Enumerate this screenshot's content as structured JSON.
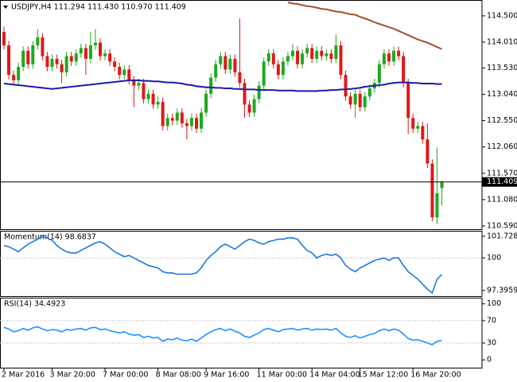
{
  "chart_data": [
    {
      "type": "candlestick",
      "title": "USDJPY,H4  111.294 111.430 110.970 111.409",
      "categories": [
        "2 Mar 2016",
        null,
        null,
        null,
        null,
        null,
        null,
        null,
        null,
        null,
        "3 Mar 20:00",
        null,
        null,
        null,
        null,
        null,
        null,
        null,
        null,
        null,
        null,
        "7 Mar 00:00",
        null,
        null,
        null,
        null,
        null,
        null,
        null,
        null,
        null,
        null,
        "8 Mar 08:00",
        null,
        null,
        null,
        null,
        null,
        null,
        null,
        null,
        null,
        "9 Mar 16:00",
        null,
        null,
        null,
        null,
        null,
        null,
        null,
        null,
        null,
        null,
        "11 Mar 00:00",
        null,
        null,
        null,
        null,
        null,
        null,
        null,
        null,
        null,
        null,
        "14 Mar 04:00",
        null,
        null,
        null,
        null,
        null,
        null,
        null,
        null,
        null,
        "15 Mar 12:00",
        null,
        null,
        null,
        null,
        null,
        null,
        null,
        null,
        null,
        null,
        "16 Mar 20:00",
        null,
        null,
        null,
        null,
        null,
        null
      ],
      "open": [
        114.2,
        113.95,
        113.4,
        113.3,
        113.55,
        113.85,
        113.6,
        113.95,
        114.1,
        113.75,
        113.55,
        113.7,
        113.6,
        113.45,
        113.75,
        113.65,
        113.8,
        113.9,
        113.7,
        113.95,
        114.0,
        113.75,
        113.8,
        113.65,
        113.55,
        113.4,
        113.5,
        113.3,
        113.2,
        113.25,
        112.95,
        113.05,
        112.85,
        112.9,
        112.45,
        112.6,
        112.55,
        112.7,
        112.5,
        112.45,
        112.6,
        112.4,
        112.7,
        113.05,
        113.35,
        113.6,
        113.75,
        113.5,
        113.7,
        113.45,
        113.25,
        112.85,
        112.7,
        112.95,
        113.2,
        113.65,
        113.8,
        113.6,
        113.4,
        113.65,
        113.75,
        113.85,
        113.6,
        113.8,
        113.9,
        113.7,
        113.85,
        113.75,
        113.8,
        113.7,
        113.95,
        113.4,
        113.0,
        112.85,
        113.05,
        112.8,
        113.0,
        113.15,
        113.25,
        113.6,
        113.8,
        113.65,
        113.85,
        113.75,
        113.25,
        112.6,
        112.4,
        112.45,
        112.2,
        111.75,
        110.75,
        111.294
      ],
      "high": [
        114.3,
        114.03,
        113.48,
        113.63,
        113.93,
        113.93,
        114.03,
        114.25,
        114.18,
        113.83,
        113.78,
        113.78,
        113.68,
        113.83,
        113.83,
        113.88,
        113.98,
        113.98,
        114.2,
        114.25,
        114.08,
        113.88,
        113.88,
        113.73,
        113.63,
        113.58,
        113.58,
        113.38,
        113.33,
        113.33,
        113.13,
        113.13,
        113.0,
        112.98,
        112.68,
        112.68,
        112.78,
        112.78,
        112.58,
        112.68,
        112.68,
        112.78,
        113.13,
        113.43,
        113.68,
        113.83,
        113.83,
        113.78,
        113.78,
        114.45,
        113.33,
        112.93,
        113.03,
        113.28,
        113.73,
        113.88,
        113.88,
        113.68,
        113.73,
        113.83,
        113.98,
        113.93,
        113.88,
        113.98,
        113.98,
        113.93,
        113.93,
        113.88,
        113.88,
        114.15,
        114.03,
        113.48,
        113.08,
        113.13,
        113.13,
        113.08,
        113.23,
        113.33,
        113.68,
        113.88,
        113.88,
        113.93,
        113.93,
        113.83,
        113.33,
        112.68,
        112.53,
        112.53,
        112.5,
        111.83,
        112.05,
        111.43
      ],
      "low": [
        113.87,
        113.32,
        113.22,
        113.22,
        113.47,
        113.52,
        113.52,
        113.87,
        113.67,
        113.47,
        113.47,
        113.52,
        113.25,
        113.37,
        113.57,
        113.57,
        113.72,
        113.4,
        113.62,
        113.87,
        113.67,
        113.67,
        113.57,
        113.47,
        113.32,
        113.32,
        113.22,
        112.8,
        113.12,
        112.87,
        112.87,
        112.77,
        112.77,
        112.37,
        112.37,
        112.47,
        112.47,
        112.42,
        112.2,
        112.37,
        112.32,
        112.32,
        112.62,
        112.97,
        113.27,
        113.52,
        113.42,
        113.42,
        113.37,
        113.17,
        112.6,
        112.62,
        112.62,
        112.87,
        113.12,
        113.57,
        113.52,
        113.32,
        113.32,
        113.57,
        113.67,
        113.52,
        113.52,
        113.72,
        113.62,
        113.62,
        113.67,
        113.67,
        113.62,
        113.62,
        113.32,
        112.92,
        112.77,
        112.6,
        112.72,
        112.72,
        112.92,
        113.07,
        113.17,
        113.52,
        113.57,
        113.57,
        113.67,
        113.17,
        112.3,
        112.32,
        112.32,
        112.12,
        111.67,
        110.68,
        110.62,
        110.97
      ],
      "close": [
        113.95,
        113.4,
        113.3,
        113.55,
        113.85,
        113.6,
        113.95,
        114.1,
        113.75,
        113.55,
        113.7,
        113.6,
        113.45,
        113.75,
        113.65,
        113.8,
        113.9,
        113.7,
        113.95,
        114.0,
        113.75,
        113.8,
        113.65,
        113.55,
        113.4,
        113.5,
        113.3,
        113.2,
        113.25,
        112.95,
        113.05,
        112.85,
        112.9,
        112.45,
        112.6,
        112.55,
        112.7,
        112.5,
        112.45,
        112.6,
        112.4,
        112.7,
        113.05,
        113.35,
        113.6,
        113.75,
        113.5,
        113.7,
        113.45,
        113.25,
        112.85,
        112.7,
        112.95,
        113.2,
        113.65,
        113.8,
        113.6,
        113.4,
        113.65,
        113.75,
        113.85,
        113.6,
        113.8,
        113.9,
        113.7,
        113.85,
        113.75,
        113.8,
        113.7,
        113.95,
        113.4,
        113.0,
        112.85,
        113.05,
        112.8,
        113.0,
        113.15,
        113.25,
        113.6,
        113.8,
        113.65,
        113.85,
        113.75,
        113.25,
        112.6,
        112.4,
        112.45,
        112.2,
        111.75,
        110.75,
        111.2,
        111.409
      ],
      "up_color": "#1fa81f",
      "down_color": "#e01818",
      "overlays": [
        {
          "color": "#1a1aa8",
          "values": [
            113.24,
            113.23,
            113.22,
            113.21,
            113.2,
            113.19,
            113.18,
            113.17,
            113.16,
            113.15,
            113.14,
            113.15,
            113.16,
            113.17,
            113.18,
            113.19,
            113.2,
            113.21,
            113.22,
            113.23,
            113.24,
            113.25,
            113.26,
            113.27,
            113.28,
            113.29,
            113.3,
            113.3,
            113.3,
            113.29,
            113.29,
            113.28,
            113.28,
            113.27,
            113.26,
            113.26,
            113.25,
            113.24,
            113.22,
            113.21,
            113.19,
            113.18,
            113.17,
            113.17,
            113.16,
            113.16,
            113.15,
            113.15,
            113.14,
            113.14,
            113.13,
            113.13,
            113.13,
            113.12,
            113.12,
            113.12,
            113.12,
            113.11,
            113.11,
            113.11,
            113.11,
            113.1,
            113.1,
            113.1,
            113.1,
            113.1,
            113.11,
            113.11,
            113.12,
            113.12,
            113.13,
            113.13,
            113.14,
            113.15,
            113.16,
            113.18,
            113.19,
            113.2,
            113.21,
            113.22,
            113.24,
            113.25,
            113.26,
            113.26,
            113.26,
            113.25,
            113.25,
            113.24,
            113.24,
            113.24,
            113.23,
            113.23
          ]
        },
        {
          "color": "#a0522d",
          "values": [
            null,
            null,
            null,
            null,
            null,
            null,
            null,
            null,
            null,
            null,
            null,
            null,
            null,
            null,
            null,
            null,
            null,
            null,
            null,
            null,
            null,
            null,
            null,
            null,
            null,
            null,
            null,
            null,
            null,
            null,
            null,
            null,
            null,
            null,
            null,
            null,
            null,
            null,
            null,
            null,
            null,
            null,
            null,
            null,
            null,
            null,
            null,
            null,
            null,
            null,
            null,
            null,
            null,
            null,
            null,
            null,
            null,
            null,
            null,
            114.75,
            114.73,
            114.72,
            114.7,
            114.68,
            114.67,
            114.65,
            114.63,
            114.62,
            114.6,
            114.58,
            114.57,
            114.55,
            114.53,
            114.52,
            114.48,
            114.45,
            114.42,
            114.38,
            114.35,
            114.32,
            114.29,
            114.26,
            114.22,
            114.18,
            114.14,
            114.1,
            114.06,
            114.03,
            114.0,
            113.96,
            113.92,
            113.88
          ]
        }
      ],
      "last_price": 111.409,
      "ylim": [
        110.53,
        114.75
      ],
      "yticks": [
        {
          "value": 114.5,
          "label": "114.500"
        },
        {
          "value": 114.01,
          "label": "114.010"
        },
        {
          "value": 113.53,
          "label": "113.530"
        },
        {
          "value": 113.04,
          "label": "113.040"
        },
        {
          "value": 112.55,
          "label": "112.550"
        },
        {
          "value": 112.06,
          "label": "112.060"
        },
        {
          "value": 111.57,
          "label": "111.570"
        },
        {
          "value": 111.08,
          "label": "111.080"
        },
        {
          "value": 110.59,
          "label": "110.590"
        }
      ]
    },
    {
      "type": "line",
      "title": "Momentum(14) 98.6837",
      "color": "#1e78dc",
      "values": [
        101.0,
        100.9,
        100.7,
        100.5,
        100.8,
        101.1,
        101.3,
        101.5,
        101.7,
        101.6,
        101.4,
        101.0,
        100.7,
        100.5,
        100.4,
        100.4,
        100.6,
        100.8,
        101.0,
        101.2,
        101.3,
        101.1,
        100.8,
        100.5,
        100.3,
        100.1,
        100.2,
        100.0,
        99.8,
        99.6,
        99.4,
        99.3,
        99.2,
        98.9,
        98.8,
        98.8,
        98.7,
        98.7,
        98.7,
        98.7,
        98.8,
        99.2,
        99.8,
        100.2,
        100.5,
        100.9,
        101.1,
        100.9,
        100.7,
        101.0,
        101.3,
        101.5,
        101.4,
        101.2,
        101.1,
        101.3,
        101.4,
        101.5,
        101.5,
        101.6,
        101.6,
        101.5,
        101.0,
        100.6,
        100.4,
        100.0,
        100.2,
        100.3,
        100.2,
        100.3,
        100.0,
        99.4,
        99.1,
        98.9,
        99.2,
        99.4,
        99.6,
        99.8,
        99.9,
        100.0,
        99.8,
        100.0,
        100.0,
        99.4,
        98.9,
        98.6,
        98.3,
        97.9,
        97.5,
        97.2,
        98.3,
        98.6837
      ],
      "levels": [
        100
      ],
      "ylim": [
        96.95,
        102.17
      ],
      "yticks": [
        101.728,
        100,
        97.3959
      ]
    },
    {
      "type": "line",
      "title": "RSI(14) 34.4923",
      "color": "#1e90ff",
      "values": [
        58,
        55,
        50,
        52,
        56,
        53,
        57,
        59,
        55,
        52,
        54,
        53,
        50,
        54,
        53,
        55,
        56,
        53,
        57,
        58,
        54,
        55,
        52,
        50,
        48,
        50,
        46,
        44,
        45,
        40,
        42,
        39,
        40,
        33,
        37,
        36,
        39,
        35,
        34,
        37,
        33,
        39,
        45,
        50,
        54,
        56,
        52,
        55,
        51,
        48,
        42,
        40,
        44,
        48,
        54,
        56,
        53,
        50,
        54,
        55,
        56,
        53,
        55,
        56,
        53,
        55,
        54,
        55,
        53,
        56,
        48,
        42,
        40,
        43,
        39,
        42,
        45,
        47,
        52,
        55,
        52,
        55,
        53,
        46,
        38,
        35,
        36,
        33,
        30,
        27,
        33,
        34.4923
      ],
      "levels": [
        70,
        30
      ],
      "ylim": [
        -14,
        111
      ],
      "yticks": [
        100,
        70,
        30,
        0
      ]
    }
  ]
}
